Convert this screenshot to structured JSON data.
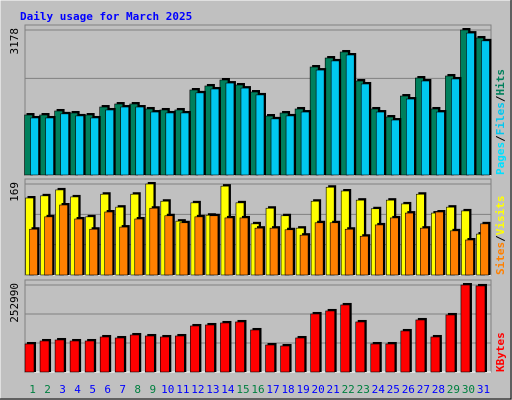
{
  "title": "Daily usage for March 2025",
  "legend_separator": "/",
  "chart_data": [
    {
      "type": "bar",
      "ylim": [
        0,
        3178
      ],
      "yticks": [
        3178
      ],
      "grid": true,
      "series": [
        {
          "name": "Pages",
          "color": "#00e0ff",
          "values": [
            null,
            null,
            null,
            null,
            null,
            null,
            null,
            null,
            null,
            null,
            null,
            null,
            null,
            null,
            null,
            null,
            null,
            null,
            null,
            null,
            null,
            null,
            null,
            null,
            null,
            null,
            null,
            null,
            null,
            null,
            null
          ]
        },
        {
          "name": "Files",
          "color": "#00c8f0",
          "values": [
            1250,
            1250,
            1340,
            1295,
            1250,
            1425,
            1490,
            1490,
            1380,
            1360,
            1360,
            1800,
            1885,
            2015,
            1905,
            1755,
            1230,
            1295,
            1380,
            2300,
            2500,
            2630,
            1995,
            1380,
            1205,
            1665,
            2060,
            1380,
            2105,
            3110,
            2940
          ]
        },
        {
          "name": "Hits",
          "color": "#00805c",
          "values": [
            1315,
            1315,
            1403,
            1359,
            1315,
            1490,
            1556,
            1556,
            1447,
            1425,
            1425,
            1863,
            1951,
            2082,
            1973,
            1819,
            1293,
            1359,
            1447,
            2367,
            2564,
            2696,
            2060,
            1447,
            1271,
            1731,
            2126,
            1447,
            2170,
            3178,
            3003
          ]
        }
      ]
    },
    {
      "type": "bar",
      "ylim": [
        0,
        169
      ],
      "yticks": [
        169
      ],
      "grid": true,
      "series": [
        {
          "name": "Sites",
          "color": "#ff8000",
          "values": [
            85,
            108,
            130,
            104,
            85,
            117,
            89,
            104,
            124,
            110,
            97,
            108,
            110,
            106,
            106,
            87,
            87,
            84,
            74,
            97,
            97,
            85,
            72,
            93,
            106,
            115,
            87,
            117,
            82,
            65,
            95
          ]
        },
        {
          "name": "Visits",
          "color": "#ffff00",
          "values": [
            143,
            147,
            158,
            145,
            108,
            150,
            126,
            150,
            169,
            137,
            100,
            134,
            111,
            165,
            134,
            95,
            124,
            110,
            87,
            137,
            163,
            156,
            139,
            123,
            139,
            132,
            150,
            115,
            126,
            119,
            76
          ]
        }
      ]
    },
    {
      "type": "bar",
      "ylim": [
        0,
        252990
      ],
      "yticks": [
        252990
      ],
      "grid": true,
      "series": [
        {
          "name": "KBytes",
          "color": "#ff0000",
          "values": [
            81480,
            90210,
            93120,
            90210,
            90210,
            101850,
            98940,
            107670,
            104760,
            101850,
            104760,
            133860,
            136770,
            142590,
            145500,
            122220,
            78570,
            75660,
            98940,
            168780,
            177510,
            194970,
            145500,
            81480,
            81480,
            119310,
            151320,
            101850,
            165870,
            252990,
            250260
          ]
        }
      ],
      "categories": [
        "1",
        "2",
        "3",
        "4",
        "5",
        "6",
        "7",
        "8",
        "9",
        "10",
        "11",
        "12",
        "13",
        "14",
        "15",
        "16",
        "17",
        "18",
        "19",
        "20",
        "21",
        "22",
        "23",
        "24",
        "25",
        "26",
        "27",
        "28",
        "29",
        "30",
        "31"
      ],
      "category_colors": [
        "#008040",
        "#008040",
        "#0000ff",
        "#0000ff",
        "#0000ff",
        "#0000ff",
        "#0000ff",
        "#008040",
        "#008040",
        "#0000ff",
        "#0000ff",
        "#0000ff",
        "#0000ff",
        "#0000ff",
        "#008040",
        "#008040",
        "#0000ff",
        "#0000ff",
        "#0000ff",
        "#0000ff",
        "#0000ff",
        "#008040",
        "#008040",
        "#0000ff",
        "#0000ff",
        "#0000ff",
        "#0000ff",
        "#0000ff",
        "#008040",
        "#008040",
        "#0000ff"
      ]
    }
  ]
}
